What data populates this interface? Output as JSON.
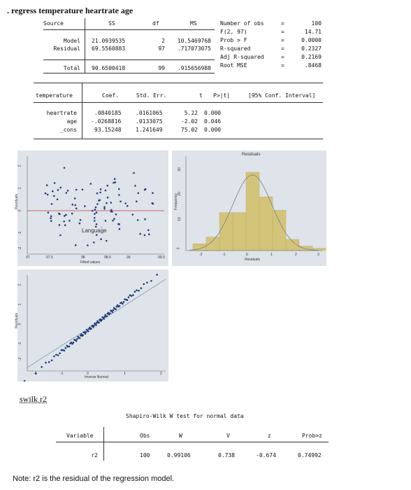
{
  "command": ". regress temperature heartrate age",
  "anova": {
    "headers": [
      "Source",
      "SS",
      "df",
      "MS"
    ],
    "rows": [
      {
        "source": "Model",
        "ss": "21.0939535",
        "df": "2",
        "ms": "10.5469768"
      },
      {
        "source": "Residual",
        "ss": "69.5560883",
        "df": "97",
        "ms": ".717073075"
      },
      {
        "source": "Total",
        "ss": "90.6500418",
        "df": "99",
        "ms": ".915656988"
      }
    ]
  },
  "fit_stats": [
    {
      "label": "Number of obs",
      "eq": "=",
      "value": "100"
    },
    {
      "label": "F(2, 97)",
      "eq": "=",
      "value": "14.71"
    },
    {
      "label": "Prob > F",
      "eq": "=",
      "value": "0.0000"
    },
    {
      "label": "R-squared",
      "eq": "=",
      "value": "0.2327"
    },
    {
      "label": "Adj R-squared",
      "eq": "=",
      "value": "0.2169"
    },
    {
      "label": "Root MSE",
      "eq": "=",
      "value": ".8468"
    }
  ],
  "coef_table": {
    "dep_var": "temperature",
    "headers": [
      "Coef.",
      "Std. Err.",
      "t",
      "P>|t|",
      "[95% Conf. Interval]"
    ],
    "rows": [
      {
        "var": "heartrate",
        "coef": ".0840185",
        "se": ".0161065",
        "t": "5.22",
        "p": "0.000"
      },
      {
        "var": "age",
        "coef": "-.0268816",
        "se": ".0133075",
        "t": "-2.02",
        "p": "0.046"
      },
      {
        "var": "_cons",
        "coef": "93.15248",
        "se": "1.241649",
        "t": "75.02",
        "p": "0.000"
      }
    ]
  },
  "scatter_plot": {
    "ylabel": "Residuals",
    "xlabel": "Fitted values",
    "overlay_label": "Language",
    "yticks": [
      "2",
      "1",
      "0",
      "-1",
      "-2"
    ],
    "xticks": [
      "97",
      "97.5",
      "98",
      "98.5",
      "99",
      "99.5"
    ]
  },
  "histogram": {
    "title": "Residuals",
    "ylabel": "Frequency",
    "xlabel": "Residuals",
    "yticks": [
      "30",
      "20",
      "10",
      "0"
    ],
    "xticks": [
      "-2",
      "-1",
      "0",
      "1",
      "2",
      "3"
    ],
    "bar_color": "#d4c47a"
  },
  "qq_plot": {
    "ylabel": "Residuals",
    "xlabel": "Inverse Normal",
    "yticks": [
      "2",
      "1",
      "0",
      "-1",
      "-2"
    ],
    "xticks": [
      "-2",
      "-1",
      "0",
      "1",
      "2"
    ]
  },
  "swilk_cmd": "swilk r2",
  "swilk": {
    "title": "Shapiro-Wilk W test for normal data",
    "headers": [
      "Variable",
      "Obs",
      "W",
      "V",
      "z",
      "Prob>z"
    ],
    "row": {
      "var": "r2",
      "obs": "100",
      "w": "0.99106",
      "v": "0.738",
      "z": "-0.674",
      "p": "0.74992"
    }
  },
  "note": "Note: r2 is the residual of the regression model."
}
